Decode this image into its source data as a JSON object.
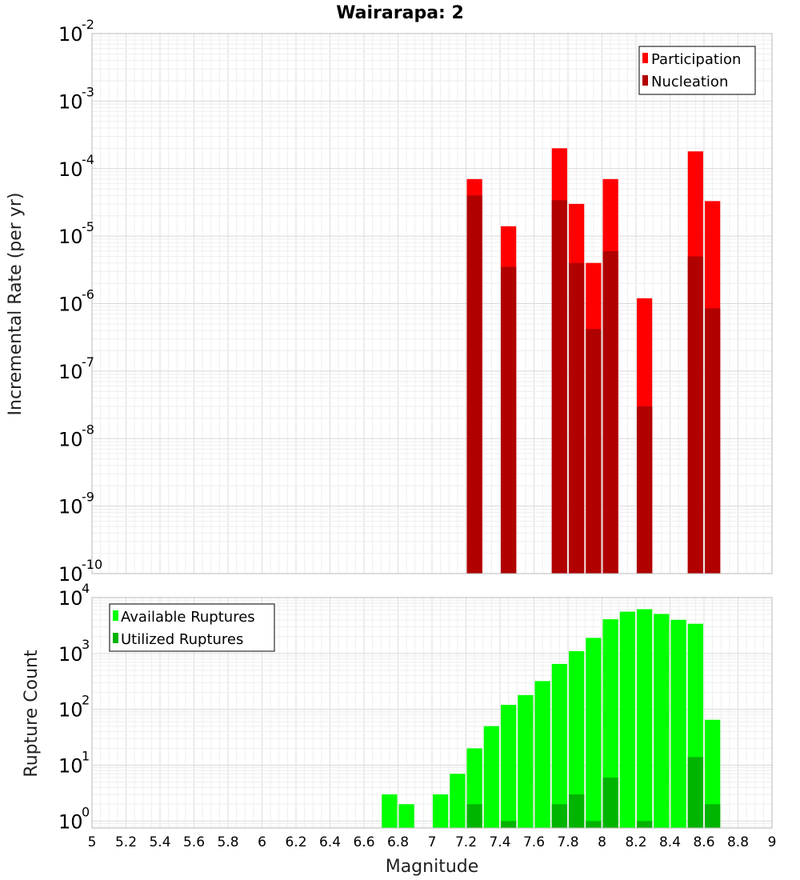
{
  "chart_data": [
    {
      "type": "bar",
      "title": "Wairarapa: 2",
      "xlabel": "",
      "ylabel": "Incremental Rate (per yr)",
      "yscale": "log",
      "ylim": [
        1e-10,
        0.01
      ],
      "xlim": [
        5,
        9
      ],
      "bin_width": 0.1,
      "grid": true,
      "legend_position": "top-right",
      "series": [
        {
          "name": "Participation",
          "color": "#ff0000",
          "x": [
            7.25,
            7.45,
            7.75,
            7.85,
            7.95,
            8.05,
            8.25,
            8.55,
            8.65
          ],
          "values": [
            7e-05,
            1.4e-05,
            0.0002,
            3e-05,
            4e-06,
            7e-05,
            1.2e-06,
            0.00018,
            3.3e-05
          ]
        },
        {
          "name": "Nucleation",
          "color": "#b00000",
          "x": [
            7.25,
            7.45,
            7.75,
            7.85,
            7.95,
            8.05,
            8.25,
            8.55,
            8.65
          ],
          "values": [
            4e-05,
            3.5e-06,
            3.4e-05,
            4e-06,
            4.2e-07,
            6e-06,
            3e-08,
            5e-06,
            8.5e-07
          ]
        }
      ]
    },
    {
      "type": "bar",
      "title": "",
      "xlabel": "Magnitude",
      "ylabel": "Rupture Count",
      "yscale": "log",
      "ylim": [
        0.75,
        10000
      ],
      "xlim": [
        5,
        9
      ],
      "bin_width": 0.1,
      "grid": true,
      "legend_position": "top-left",
      "series": [
        {
          "name": "Available Ruptures",
          "color": "#00ff00",
          "x": [
            6.75,
            6.85,
            7.05,
            7.15,
            7.25,
            7.35,
            7.45,
            7.55,
            7.65,
            7.75,
            7.85,
            7.95,
            8.05,
            8.15,
            8.25,
            8.35,
            8.45,
            8.55,
            8.65
          ],
          "values": [
            3,
            2,
            3,
            7,
            20,
            50,
            120,
            180,
            320,
            650,
            1100,
            1900,
            4100,
            5600,
            6200,
            5100,
            4000,
            3400,
            65
          ]
        },
        {
          "name": "Utilized Ruptures",
          "color": "#00b400",
          "x": [
            7.25,
            7.45,
            7.75,
            7.85,
            7.95,
            8.05,
            8.25,
            8.55,
            8.65
          ],
          "values": [
            2,
            1,
            2,
            3,
            1,
            6,
            1,
            14,
            2
          ]
        }
      ]
    }
  ],
  "x_ticks": [
    "5",
    "5.2",
    "5.4",
    "5.6",
    "5.8",
    "6",
    "6.2",
    "6.4",
    "6.6",
    "6.8",
    "7",
    "7.2",
    "7.4",
    "7.6",
    "7.8",
    "8",
    "8.2",
    "8.4",
    "8.6",
    "8.8",
    "9"
  ],
  "top_y_ticks": [
    {
      "base": "10",
      "exp": "-2",
      "value": 0.01
    },
    {
      "base": "10",
      "exp": "-3",
      "value": 0.001
    },
    {
      "base": "10",
      "exp": "-4",
      "value": 0.0001
    },
    {
      "base": "10",
      "exp": "-5",
      "value": 1e-05
    },
    {
      "base": "10",
      "exp": "-6",
      "value": 1e-06
    },
    {
      "base": "10",
      "exp": "-7",
      "value": 1e-07
    },
    {
      "base": "10",
      "exp": "-8",
      "value": 1e-08
    },
    {
      "base": "10",
      "exp": "-9",
      "value": 1e-09
    },
    {
      "base": "10",
      "exp": "-10",
      "value": 1e-10
    }
  ],
  "bottom_y_ticks": [
    {
      "base": "10",
      "exp": "4",
      "value": 10000
    },
    {
      "base": "10",
      "exp": "3",
      "value": 1000
    },
    {
      "base": "10",
      "exp": "2",
      "value": 100
    },
    {
      "base": "10",
      "exp": "1",
      "value": 10
    },
    {
      "base": "10",
      "exp": "0",
      "value": 1
    }
  ]
}
